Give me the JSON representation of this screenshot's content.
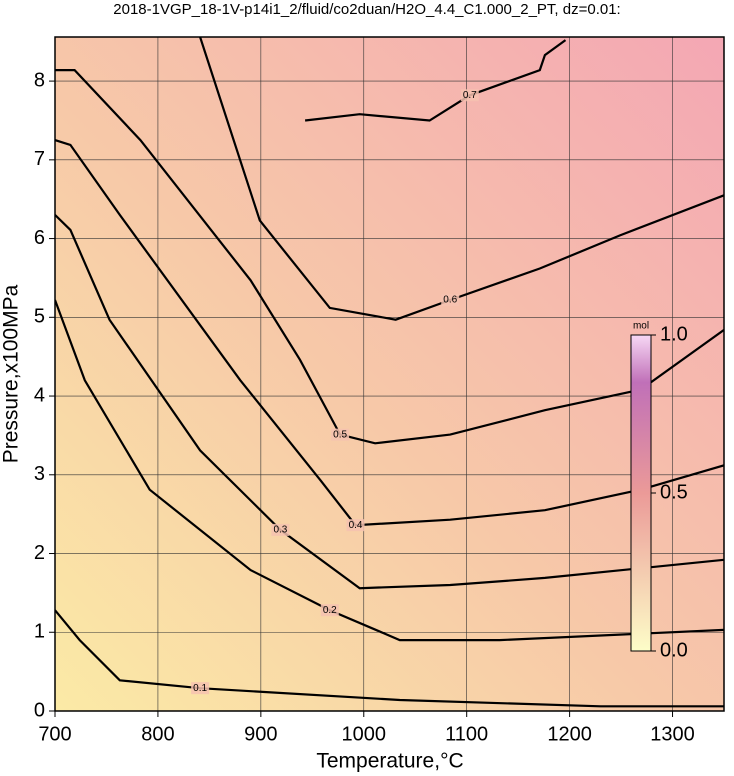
{
  "chart_data": {
    "type": "contour",
    "title": "2018-1VGP_18-1V-p14i1_2/fluid/co2duan/H2O_4.4_C1.000_2_PT, dz=0.01:",
    "x_label": "Temperature,°C",
    "y_label": "Pressure,x100MPa",
    "xlim": [
      700,
      1350
    ],
    "ylim": [
      0,
      8.56
    ],
    "xticks": [
      700,
      800,
      900,
      1000,
      1100,
      1200,
      1300
    ],
    "yticks": [
      0,
      1,
      2,
      3,
      4,
      5,
      6,
      7,
      8
    ],
    "grid": true,
    "color": "#000000",
    "contours": [
      {
        "level": 0.1,
        "x": [
          700,
          724,
          763,
          841,
          1035,
          1230,
          1350
        ],
        "y": [
          1.28,
          0.9,
          0.39,
          0.29,
          0.14,
          0.06,
          0.06
        ]
      },
      {
        "level": 0.2,
        "x": [
          700,
          729,
          792,
          890,
          967,
          1035,
          1132,
          1350
        ],
        "y": [
          5.22,
          4.2,
          2.81,
          1.79,
          1.28,
          0.9,
          0.9,
          1.03
        ]
      },
      {
        "level": 0.3,
        "x": [
          700,
          715,
          753,
          841,
          919,
          996,
          1084,
          1176,
          1350
        ],
        "y": [
          6.3,
          6.11,
          4.97,
          3.31,
          2.3,
          1.56,
          1.6,
          1.69,
          1.92
        ]
      },
      {
        "level": 0.4,
        "x": [
          700,
          715,
          763,
          880,
          958,
          992,
          1084,
          1176,
          1269,
          1350
        ],
        "y": [
          7.25,
          7.19,
          6.3,
          4.2,
          2.93,
          2.36,
          2.43,
          2.55,
          2.81,
          3.12
        ]
      },
      {
        "level": 0.5,
        "x": [
          700,
          719,
          783,
          890,
          938,
          977,
          1011,
          1084,
          1176,
          1269,
          1350
        ],
        "y": [
          8.14,
          8.14,
          7.25,
          5.47,
          4.46,
          3.51,
          3.4,
          3.51,
          3.82,
          4.08,
          4.84
        ]
      },
      {
        "level": 0.6,
        "x": [
          841,
          899,
          967,
          1031,
          1084,
          1171,
          1249,
          1350
        ],
        "y": [
          8.56,
          6.23,
          5.12,
          4.97,
          5.22,
          5.62,
          6.04,
          6.55
        ]
      },
      {
        "level": 0.7,
        "x": [
          943,
          996,
          1064,
          1103,
          1171,
          1176,
          1196
        ],
        "y": [
          7.5,
          7.58,
          7.5,
          7.82,
          8.14,
          8.33,
          8.52
        ]
      }
    ],
    "colorbar": {
      "label": "mol",
      "lim": [
        0,
        1
      ],
      "ticks": [
        {
          "value": 0,
          "label": "0.0"
        },
        {
          "value": 0.5,
          "label": "0.5"
        },
        {
          "value": 1,
          "label": "1.0"
        }
      ]
    }
  }
}
